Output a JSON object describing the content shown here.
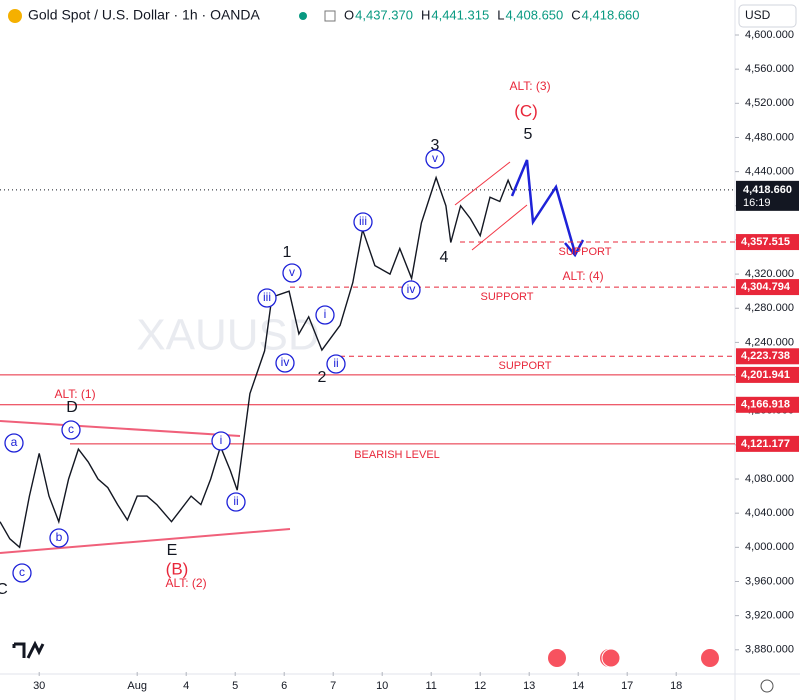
{
  "chart_data": {
    "type": "line",
    "title": "Gold Spot / U.S. Dollar · 1h · OANDA",
    "ohlc": [
      {
        "key": "O",
        "value": 4437.37,
        "label": "4,437.370"
      },
      {
        "key": "H",
        "value": 4441.315,
        "label": "4,441.315"
      },
      {
        "key": "L",
        "value": 4408.65,
        "label": "4,408.650"
      },
      {
        "key": "C",
        "value": 4418.66,
        "label": "4,418.660"
      }
    ],
    "currency": "USD",
    "watermark": "XAUUSD",
    "series": [
      {
        "name": "XAUUSD",
        "color": "#131722",
        "x": [
          -0.8,
          -0.6,
          -0.4,
          -0.2,
          0,
          0.2,
          0.4,
          0.6,
          0.8,
          1.0,
          1.2,
          1.4,
          1.6,
          1.8,
          2.0,
          2.2,
          2.4,
          2.7,
          2.9,
          3.1,
          3.3,
          3.5,
          3.7,
          3.9,
          4.04,
          4.3,
          4.6,
          4.75,
          5.1,
          5.3,
          5.5,
          5.77,
          6.14,
          6.4,
          6.6,
          6.85,
          7.16,
          7.36,
          7.6,
          7.8,
          8.1,
          8.3,
          8.4,
          8.6,
          8.8,
          9.0,
          9.2,
          9.4,
          9.57,
          9.65
        ],
        "values": [
          4030,
          4010,
          4000,
          4060,
          4110,
          4060,
          4030,
          4080,
          4115,
          4100,
          4080,
          4070,
          4050,
          4032,
          4060,
          4060,
          4050,
          4030,
          4045,
          4060,
          4050,
          4080,
          4118,
          4090,
          4067,
          4180,
          4230,
          4293,
          4300,
          4250,
          4270,
          4231,
          4260,
          4310,
          4372,
          4330,
          4320,
          4350,
          4315,
          4380,
          4433,
          4400,
          4357,
          4400,
          4385,
          4365,
          4410,
          4405,
          4430,
          4418.66
        ]
      }
    ],
    "last_price": {
      "value": 4418.66,
      "label": "4,418.660"
    },
    "countdown": "16:19",
    "levels": [
      {
        "value": 4357.515,
        "label": "4,357.515"
      },
      {
        "value": 4304.794,
        "label": "4,304.794"
      },
      {
        "value": 4223.738,
        "label": "4,223.738"
      },
      {
        "value": 4201.941,
        "label": "4,201.941"
      },
      {
        "value": 4166.918,
        "label": "4,166.918"
      },
      {
        "value": 4121.177,
        "label": "4,121.177"
      }
    ],
    "annotations": [
      "a",
      "c",
      "D",
      "b",
      "c",
      "C",
      "E",
      "(B)",
      "ALT: (2)",
      "ALT: (1)",
      "i",
      "ii",
      "iii",
      "iv",
      "v",
      "1",
      "i",
      "ii",
      "2",
      "iii",
      "iv",
      "3",
      "v",
      "4",
      "5",
      "(C)",
      "ALT: (3)",
      "ALT: (4)",
      "SUPPORT",
      "SUPPORT",
      "SUPPORT",
      "BEARISH LEVEL"
    ],
    "xlim": [
      -0.8,
      14.2
    ],
    "ylim": [
      3854,
      4641
    ],
    "xticks": [
      {
        "value": 0,
        "label": "30"
      },
      {
        "value": 2,
        "label": "Aug"
      },
      {
        "value": 3,
        "label": "4"
      },
      {
        "value": 4,
        "label": "5"
      },
      {
        "value": 5,
        "label": "6"
      },
      {
        "value": 6,
        "label": "7"
      },
      {
        "value": 7,
        "label": "10"
      },
      {
        "value": 8,
        "label": "11"
      },
      {
        "value": 9,
        "label": "12"
      },
      {
        "value": 10,
        "label": "13"
      },
      {
        "value": 11,
        "label": "14"
      },
      {
        "value": 12,
        "label": "17"
      },
      {
        "value": 13,
        "label": "18"
      }
    ],
    "yticks": [
      {
        "value": 4600,
        "label": "4,600.000"
      },
      {
        "value": 4560,
        "label": "4,560.000"
      },
      {
        "value": 4520,
        "label": "4,520.000"
      },
      {
        "value": 4480,
        "label": "4,480.000"
      },
      {
        "value": 4440,
        "label": "4,440.000"
      },
      {
        "value": 4400,
        "label": "4,400.000"
      },
      {
        "value": 4360,
        "label": "4,360.000"
      },
      {
        "value": 4320,
        "label": "4,320.000"
      },
      {
        "value": 4280,
        "label": "4,280.000"
      },
      {
        "value": 4240,
        "label": "4,240.000"
      },
      {
        "value": 4200,
        "label": "4,200.000"
      },
      {
        "value": 4160,
        "label": "4,160.000"
      },
      {
        "value": 4120,
        "label": "4,120.000"
      },
      {
        "value": 4080,
        "label": "4,080.000"
      },
      {
        "value": 4040,
        "label": "4,040.000"
      },
      {
        "value": 4000,
        "label": "4,000.000"
      },
      {
        "value": 3960,
        "label": "3,960.000"
      },
      {
        "value": 3920,
        "label": "3,920.000"
      },
      {
        "value": 3880,
        "label": "3,880.000"
      }
    ]
  }
}
